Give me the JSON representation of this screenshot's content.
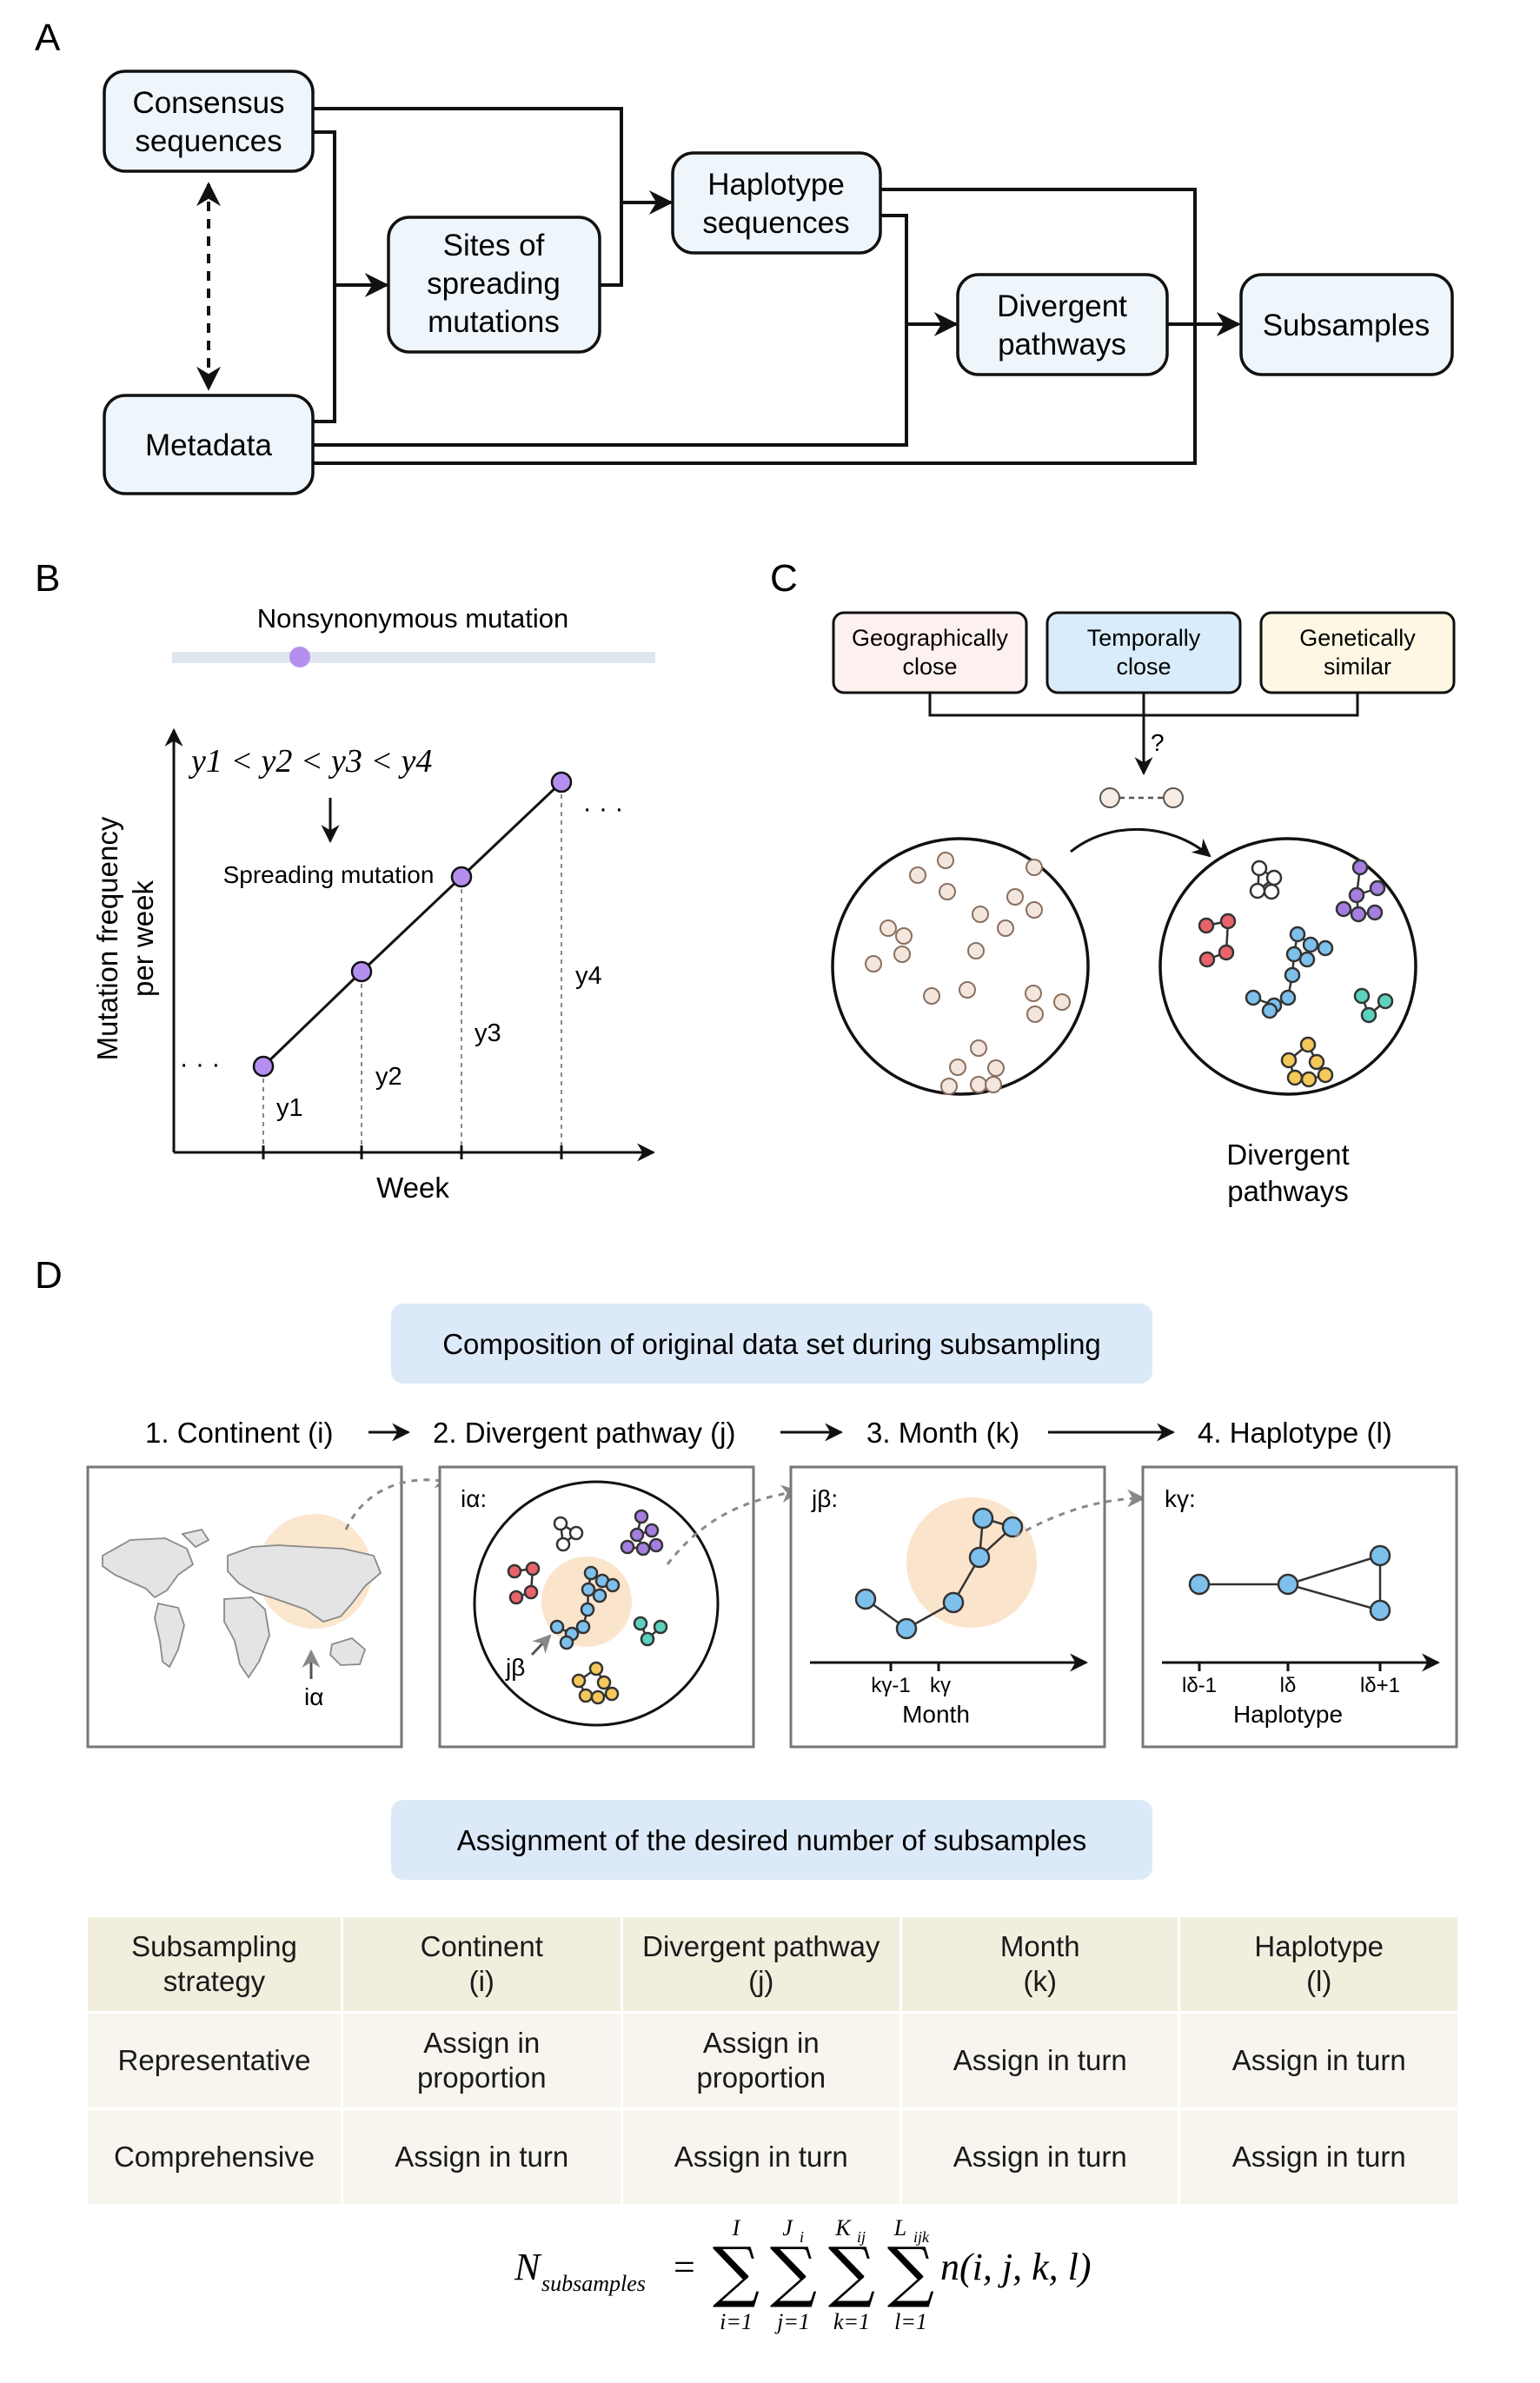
{
  "panels": {
    "A": "A",
    "B": "B",
    "C": "C",
    "D": "D"
  },
  "panel_a": {
    "consensus": [
      "Consensus",
      "sequences"
    ],
    "metadata": "Metadata",
    "sites": [
      "Sites of",
      "spreading",
      "mutations"
    ],
    "haplotype": [
      "Haplotype",
      "sequences"
    ],
    "divergent": [
      "Divergent",
      "pathways"
    ],
    "subsamples": "Subsamples"
  },
  "panel_b": {
    "bar_title": "Nonsynonymous mutation",
    "inequality": "y1 < y2 < y3 < y4",
    "spreading": "Spreading mutation",
    "ylabel": [
      "Mutation frequency",
      "per week"
    ],
    "xlabel": "Week",
    "dots_left": "· · ·",
    "dots_right": "· · ·",
    "point_labels": [
      "y1",
      "y2",
      "y3",
      "y4"
    ],
    "point_values": [
      1,
      2,
      3,
      4
    ]
  },
  "panel_c": {
    "criteria": [
      {
        "lines": [
          "Geographically",
          "close"
        ],
        "color": "#fdf1f0"
      },
      {
        "lines": [
          "Temporally",
          "close"
        ],
        "color": "#d9ecfb"
      },
      {
        "lines": [
          "Genetically",
          "similar"
        ],
        "color": "#fdf7e3"
      }
    ],
    "question": "?",
    "caption": [
      "Divergent",
      "pathways"
    ]
  },
  "panel_d": {
    "composition_title": "Composition of original data set during subsampling",
    "steps": [
      "1. Continent (i)",
      "2. Divergent pathway (j)",
      "3. Month (k)",
      "4. Haplotype (l)"
    ],
    "map_label": "iα",
    "box2_label": "iα:",
    "box2_arrow_label": "jβ",
    "box3_label": "jβ:",
    "box3_ticks": [
      "kγ-1",
      "kγ"
    ],
    "box3_xlabel": "Month",
    "box4_label": "kγ:",
    "box4_ticks": [
      "lδ-1",
      "lδ",
      "lδ+1"
    ],
    "box4_xlabel": "Haplotype",
    "assignment_title": "Assignment of the desired number of subsamples",
    "table": {
      "header": [
        [
          "Subsampling",
          "strategy"
        ],
        [
          "Continent",
          "(i)"
        ],
        [
          "Divergent pathway",
          "(j)"
        ],
        [
          "Month",
          "(k)"
        ],
        [
          "Haplotype",
          "(l)"
        ]
      ],
      "rows": [
        [
          [
            "Representative"
          ],
          [
            "Assign in",
            "proportion"
          ],
          [
            "Assign in",
            "proportion"
          ],
          [
            "Assign in turn"
          ],
          [
            "Assign in turn"
          ]
        ],
        [
          [
            "Comprehensive"
          ],
          [
            "Assign in turn"
          ],
          [
            "Assign in turn"
          ],
          [
            "Assign in turn"
          ],
          [
            "Assign in turn"
          ]
        ]
      ]
    },
    "formula": {
      "lhs": "N",
      "lhs_sub": "subsamples",
      "equals": "=",
      "sums": [
        {
          "upper": "I",
          "lower": "i=1"
        },
        {
          "upper": "J",
          "upper_sub": "i",
          "lower": "j=1"
        },
        {
          "upper": "K",
          "upper_sub": "ij",
          "lower": "k=1"
        },
        {
          "upper": "L",
          "upper_sub": "ijk",
          "lower": "l=1"
        }
      ],
      "term": "n(i, j, k, l)"
    }
  },
  "colors": {
    "box_fill": "#eef5fb",
    "pill_fill": "#dce9f8",
    "purple": "#b48ff0",
    "node_blue": "#7ec0ec",
    "node_red": "#e8646a",
    "node_purple": "#a47ee0",
    "node_teal": "#5cd1be",
    "node_yellow": "#f4c85a",
    "halo": "#fbe3c9",
    "beige_dot": "#f3e6dc"
  }
}
